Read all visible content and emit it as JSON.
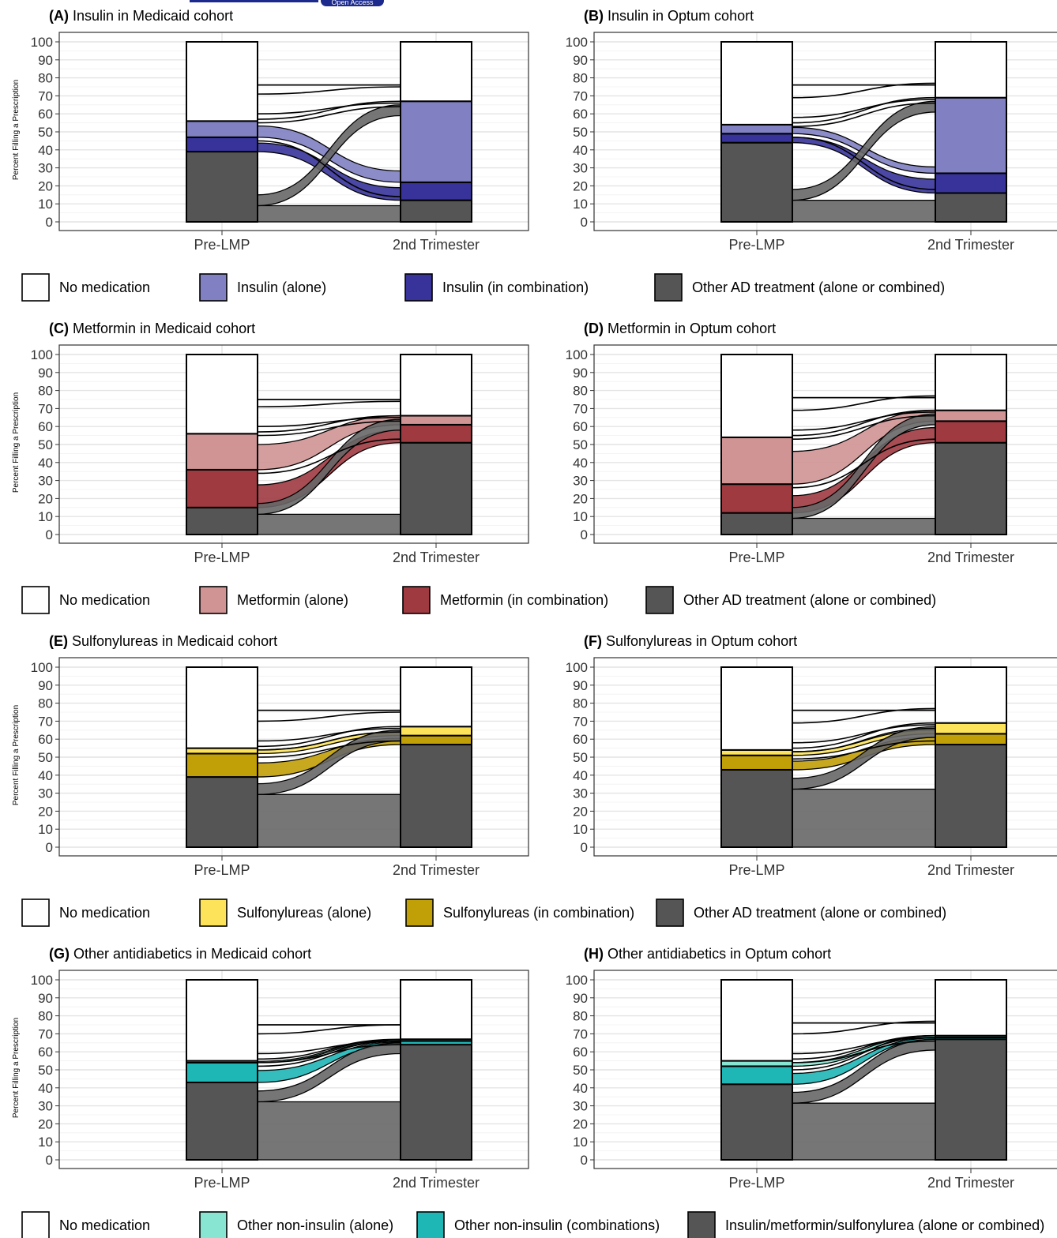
{
  "header": {
    "badge": "Open Access"
  },
  "y_axis_label": "Percent Filling a Prescription",
  "y_ticks": [
    "0",
    "10",
    "20",
    "30",
    "40",
    "50",
    "60",
    "70",
    "80",
    "90",
    "100"
  ],
  "x_ticks": [
    "Pre-LMP",
    "2nd Trimester"
  ],
  "colors": {
    "none": "#ffffff",
    "other": "#555555",
    "flow": "#676767",
    "edge": "#000000"
  },
  "legends": [
    {
      "row": 0,
      "items": [
        {
          "label": "No medication",
          "color": "#ffffff"
        },
        {
          "label": "Insulin (alone)",
          "color": "#8080c2"
        },
        {
          "label": "Insulin (in combination)",
          "color": "#37339a"
        },
        {
          "label": "Other AD treatment (alone or combined)",
          "color": "#555555"
        }
      ]
    },
    {
      "row": 1,
      "items": [
        {
          "label": "No medication",
          "color": "#ffffff"
        },
        {
          "label": "Metformin (alone)",
          "color": "#d09494"
        },
        {
          "label": "Metformin (in combination)",
          "color": "#9e3a40"
        },
        {
          "label": "Other AD treatment (alone or combined)",
          "color": "#555555"
        }
      ]
    },
    {
      "row": 2,
      "items": [
        {
          "label": "No medication",
          "color": "#ffffff"
        },
        {
          "label": "Sulfonylureas (alone)",
          "color": "#fde35a"
        },
        {
          "label": "Sulfonylureas (in combination)",
          "color": "#c19f06"
        },
        {
          "label": "Other AD treatment (alone or combined)",
          "color": "#555555"
        }
      ]
    },
    {
      "row": 3,
      "items": [
        {
          "label": "No medication",
          "color": "#ffffff"
        },
        {
          "label": "Other non-insulin (alone)",
          "color": "#88e5d2"
        },
        {
          "label": "Other non-insulin (combinations)",
          "color": "#1fb6b6"
        },
        {
          "label": "Insulin/metformin/sulfonylurea (alone or combined)",
          "color": "#555555"
        }
      ]
    }
  ],
  "chart_data": [
    {
      "type": "alluvial",
      "panel": "(A)",
      "title": "Insulin in Medicaid cohort",
      "row": 0,
      "col": 0,
      "ylabel": "Percent Filling a Prescription",
      "categories": [
        "Pre-LMP",
        "2nd Trimester"
      ],
      "ylim": [
        0,
        100
      ],
      "alone_color": "#8080c2",
      "combo_color": "#37339a",
      "pre": {
        "other": 39,
        "combo": 8,
        "alone": 9,
        "none": 44
      },
      "second": {
        "other": 12,
        "combo": 10,
        "alone": 45,
        "none": 33
      },
      "flow_top": 76
    },
    {
      "type": "alluvial",
      "panel": "(B)",
      "title": "Insulin in Optum cohort",
      "row": 0,
      "col": 1,
      "ylabel": "",
      "categories": [
        "Pre-LMP",
        "2nd Trimester"
      ],
      "ylim": [
        0,
        100
      ],
      "alone_color": "#8080c2",
      "combo_color": "#37339a",
      "pre": {
        "other": 44,
        "combo": 5,
        "alone": 5,
        "none": 46
      },
      "second": {
        "other": 16,
        "combo": 11,
        "alone": 42,
        "none": 31
      },
      "flow_top": 76
    },
    {
      "type": "alluvial",
      "panel": "(C)",
      "title": "Metformin in Medicaid cohort",
      "row": 1,
      "col": 0,
      "ylabel": "Percent Filling a Prescription",
      "categories": [
        "Pre-LMP",
        "2nd Trimester"
      ],
      "ylim": [
        0,
        100
      ],
      "alone_color": "#d09494",
      "combo_color": "#9e3a40",
      "pre": {
        "other": 15,
        "combo": 21,
        "alone": 20,
        "none": 44
      },
      "second": {
        "other": 51,
        "combo": 10,
        "alone": 5,
        "none": 34
      },
      "flow_top": 75
    },
    {
      "type": "alluvial",
      "panel": "(D)",
      "title": "Metformin in Optum cohort",
      "row": 1,
      "col": 1,
      "ylabel": "",
      "categories": [
        "Pre-LMP",
        "2nd Trimester"
      ],
      "ylim": [
        0,
        100
      ],
      "alone_color": "#d09494",
      "combo_color": "#9e3a40",
      "pre": {
        "other": 12,
        "combo": 16,
        "alone": 26,
        "none": 46
      },
      "second": {
        "other": 51,
        "combo": 12,
        "alone": 6,
        "none": 31
      },
      "flow_top": 76
    },
    {
      "type": "alluvial",
      "panel": "(E)",
      "title": "Sulfonylureas in Medicaid cohort",
      "row": 2,
      "col": 0,
      "ylabel": "Percent Filling a Prescription",
      "categories": [
        "Pre-LMP",
        "2nd Trimester"
      ],
      "ylim": [
        0,
        100
      ],
      "alone_color": "#fde35a",
      "combo_color": "#c19f06",
      "pre": {
        "other": 39,
        "combo": 13,
        "alone": 3,
        "none": 45
      },
      "second": {
        "other": 57,
        "combo": 5,
        "alone": 5,
        "none": 33
      },
      "flow_top": 76
    },
    {
      "type": "alluvial",
      "panel": "(F)",
      "title": "Sulfonylureas in Optum cohort",
      "row": 2,
      "col": 1,
      "ylabel": "",
      "categories": [
        "Pre-LMP",
        "2nd Trimester"
      ],
      "ylim": [
        0,
        100
      ],
      "alone_color": "#fde35a",
      "combo_color": "#c19f06",
      "pre": {
        "other": 43,
        "combo": 8,
        "alone": 3,
        "none": 46
      },
      "second": {
        "other": 57,
        "combo": 6,
        "alone": 6,
        "none": 31
      },
      "flow_top": 76
    },
    {
      "type": "alluvial",
      "panel": "(G)",
      "title": "Other antidiabetics in Medicaid cohort",
      "row": 3,
      "col": 0,
      "ylabel": "Percent Filling a Prescription",
      "categories": [
        "Pre-LMP",
        "2nd Trimester"
      ],
      "ylim": [
        0,
        100
      ],
      "alone_color": "#88e5d2",
      "combo_color": "#1fb6b6",
      "pre": {
        "other": 43,
        "combo": 11,
        "alone": 1,
        "none": 45
      },
      "second": {
        "other": 64,
        "combo": 2,
        "alone": 1,
        "none": 33
      },
      "flow_top": 75
    },
    {
      "type": "alluvial",
      "panel": "(H)",
      "title": "Other antidiabetics in Optum cohort",
      "row": 3,
      "col": 1,
      "ylabel": "",
      "categories": [
        "Pre-LMP",
        "2nd Trimester"
      ],
      "ylim": [
        0,
        100
      ],
      "alone_color": "#88e5d2",
      "combo_color": "#1fb6b6",
      "pre": {
        "other": 42,
        "combo": 10,
        "alone": 3,
        "none": 45
      },
      "second": {
        "other": 67,
        "combo": 1,
        "alone": 1,
        "none": 31
      },
      "flow_top": 76
    }
  ]
}
